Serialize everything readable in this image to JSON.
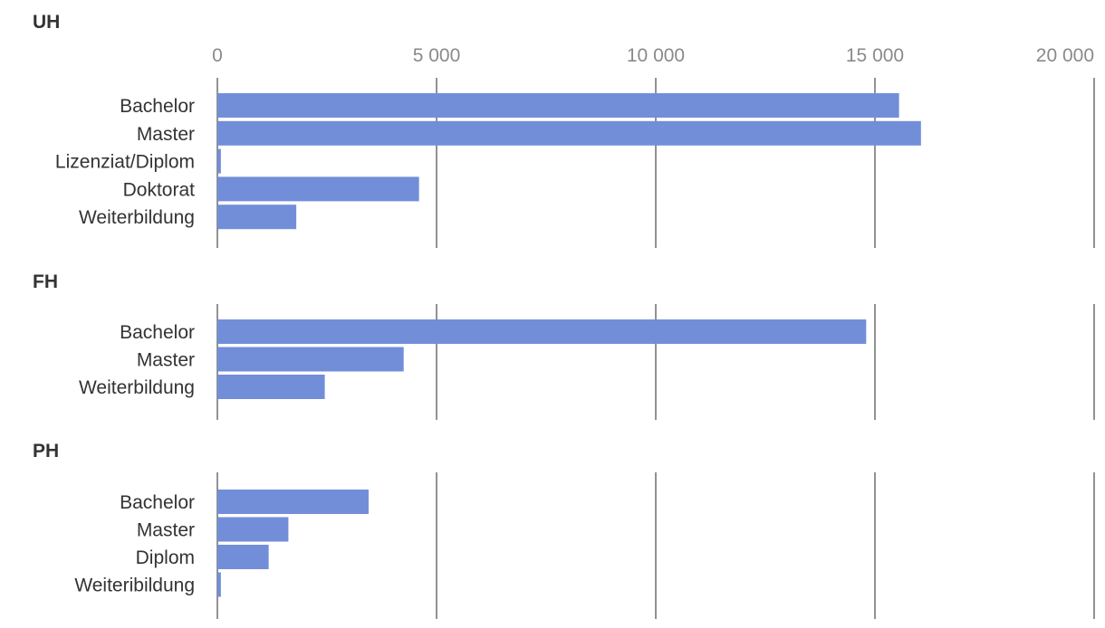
{
  "chart_data": {
    "type": "bar",
    "orientation": "horizontal",
    "x_ticks": [
      "0",
      "5 000",
      "10 000",
      "15 000",
      "20 000"
    ],
    "xlim": [
      0,
      20000
    ],
    "grid": true,
    "bar_color": "#728ed9",
    "groups": [
      {
        "title": "UH",
        "categories": [
          "Bachelor",
          "Master",
          "Lizenziat/Diplom",
          "Doktorat",
          "Weiterbildung"
        ],
        "values": [
          15550,
          16050,
          80,
          4600,
          1800
        ]
      },
      {
        "title": "FH",
        "categories": [
          "Bachelor",
          "Master",
          "Weiterbildung"
        ],
        "values": [
          14800,
          4250,
          2450
        ]
      },
      {
        "title": "PH",
        "categories": [
          "Bachelor",
          "Master",
          "Diplom",
          "Weiteribildung"
        ],
        "values": [
          3450,
          1620,
          1170,
          80
        ]
      }
    ]
  }
}
